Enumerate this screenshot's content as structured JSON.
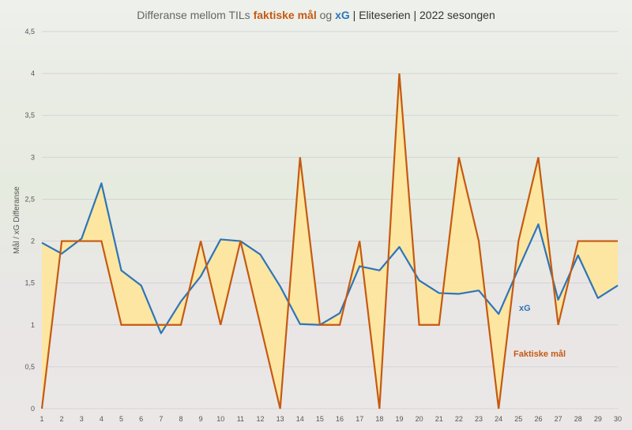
{
  "title": {
    "part1": "Differanse mellom TILs ",
    "actual": "faktiske mål",
    "part2": " og ",
    "xg": "xG",
    "part3": " | Eliteserien | 2022 sesongen"
  },
  "chart_data": {
    "type": "line",
    "title": "Differanse mellom TILs faktiske mål og xG | Eliteserien | 2022 sesongen",
    "xlabel": "",
    "ylabel": "Mål / xG Differanse",
    "ylim": [
      0,
      4.5
    ],
    "yticks": [
      "0",
      "0,5",
      "1",
      "1,5",
      "2",
      "2,5",
      "3",
      "3,5",
      "4",
      "4,5"
    ],
    "x": [
      1,
      2,
      3,
      4,
      5,
      6,
      7,
      8,
      9,
      10,
      11,
      12,
      13,
      14,
      15,
      16,
      17,
      18,
      19,
      20,
      21,
      22,
      23,
      24,
      25,
      26,
      27,
      28,
      29,
      30
    ],
    "grid": true,
    "fill_between": "#ffe699",
    "series": [
      {
        "name": "xG",
        "color": "#2e75b6",
        "values": [
          1.98,
          1.85,
          2.03,
          2.69,
          1.65,
          1.47,
          0.9,
          1.28,
          1.58,
          2.02,
          2.0,
          1.84,
          1.46,
          1.01,
          1.0,
          1.14,
          1.7,
          1.65,
          1.93,
          1.53,
          1.38,
          1.37,
          1.41,
          1.13,
          1.67,
          2.2,
          1.3,
          1.83,
          1.32,
          1.47
        ]
      },
      {
        "name": "Faktiske mål",
        "color": "#c55a11",
        "values": [
          0,
          2,
          2,
          2,
          1,
          1,
          1,
          1,
          2,
          1,
          2,
          1,
          0,
          3,
          1,
          1,
          2,
          0,
          4,
          1,
          1,
          3,
          2,
          0,
          2,
          3,
          1,
          2,
          2,
          2
        ]
      }
    ]
  }
}
